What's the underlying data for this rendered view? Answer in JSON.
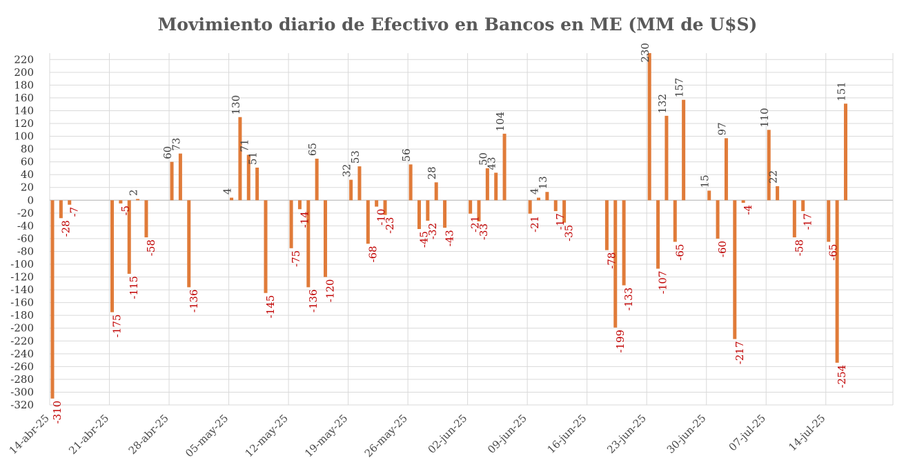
{
  "chart_data": {
    "type": "bar",
    "title": "Movimiento diario de Efectivo en Bancos en ME (MM de U$S)",
    "xlabel": "",
    "ylabel": "",
    "ylim": [
      -320,
      230
    ],
    "y_ticks": [
      220,
      200,
      180,
      160,
      140,
      120,
      100,
      80,
      60,
      40,
      20,
      0,
      -20,
      -40,
      -60,
      -80,
      -100,
      -120,
      -140,
      -160,
      -180,
      -200,
      -220,
      -240,
      -260,
      -280,
      -300,
      -320
    ],
    "x_ticks": [
      "14-abr-25",
      "21-abr-25",
      "28-abr-25",
      "05-may-25",
      "12-may-25",
      "19-may-25",
      "26-may-25",
      "02-jun-25",
      "09-jun-25",
      "16-jun-25",
      "23-jun-25",
      "30-jun-25",
      "07-jul-25",
      "14-jul-25"
    ],
    "grid": true,
    "legend": "none",
    "colors": {
      "bar": "#e07b39",
      "positive_label": "#3f3f3f",
      "negative_label": "#c00000",
      "grid": "#d9d9d9"
    },
    "data": [
      {
        "x": "14-abr-25",
        "y": -310
      },
      {
        "x": "15-abr-25",
        "y": -28
      },
      {
        "x": "16-abr-25",
        "y": -7
      },
      {
        "x": "21-abr-25",
        "y": -175
      },
      {
        "x": "22-abr-25",
        "y": -5
      },
      {
        "x": "23-abr-25",
        "y": -115
      },
      {
        "x": "24-abr-25",
        "y": 2
      },
      {
        "x": "25-abr-25",
        "y": -58
      },
      {
        "x": "28-abr-25",
        "y": 60
      },
      {
        "x": "29-abr-25",
        "y": 73
      },
      {
        "x": "30-abr-25",
        "y": -136
      },
      {
        "x": "05-may-25",
        "y": 4
      },
      {
        "x": "06-may-25",
        "y": 130
      },
      {
        "x": "07-may-25",
        "y": 71
      },
      {
        "x": "08-may-25",
        "y": 51
      },
      {
        "x": "09-may-25",
        "y": -145
      },
      {
        "x": "12-may-25",
        "y": -75
      },
      {
        "x": "13-may-25",
        "y": -14
      },
      {
        "x": "14-may-25",
        "y": -136
      },
      {
        "x": "15-may-25",
        "y": 65
      },
      {
        "x": "16-may-25",
        "y": -120
      },
      {
        "x": "19-may-25",
        "y": 32
      },
      {
        "x": "20-may-25",
        "y": 53
      },
      {
        "x": "21-may-25",
        "y": -68
      },
      {
        "x": "22-may-25",
        "y": -10
      },
      {
        "x": "23-may-25",
        "y": -23
      },
      {
        "x": "26-may-25",
        "y": 56
      },
      {
        "x": "27-may-25",
        "y": -45
      },
      {
        "x": "28-may-25",
        "y": -32
      },
      {
        "x": "29-may-25",
        "y": 28
      },
      {
        "x": "30-may-25",
        "y": -43
      },
      {
        "x": "02-jun-25",
        "y": -21
      },
      {
        "x": "03-jun-25",
        "y": -33
      },
      {
        "x": "04-jun-25",
        "y": 50
      },
      {
        "x": "05-jun-25",
        "y": 43
      },
      {
        "x": "06-jun-25",
        "y": 104
      },
      {
        "x": "09-jun-25",
        "y": -21
      },
      {
        "x": "10-jun-25",
        "y": 4
      },
      {
        "x": "11-jun-25",
        "y": 13
      },
      {
        "x": "12-jun-25",
        "y": -17
      },
      {
        "x": "13-jun-25",
        "y": -35
      },
      {
        "x": "18-jun-25",
        "y": -78
      },
      {
        "x": "19-jun-25",
        "y": -199
      },
      {
        "x": "20-jun-25",
        "y": -133
      },
      {
        "x": "23-jun-25",
        "y": 230
      },
      {
        "x": "24-jun-25",
        "y": -107
      },
      {
        "x": "25-jun-25",
        "y": 132
      },
      {
        "x": "26-jun-25",
        "y": -65
      },
      {
        "x": "27-jun-25",
        "y": 157
      },
      {
        "x": "30-jun-25",
        "y": 15
      },
      {
        "x": "01-jul-25",
        "y": -60
      },
      {
        "x": "02-jul-25",
        "y": 97
      },
      {
        "x": "03-jul-25",
        "y": -217
      },
      {
        "x": "04-jul-25",
        "y": -4
      },
      {
        "x": "07-jul-25",
        "y": 110
      },
      {
        "x": "08-jul-25",
        "y": 22
      },
      {
        "x": "10-jul-25",
        "y": -58
      },
      {
        "x": "11-jul-25",
        "y": -17
      },
      {
        "x": "14-jul-25",
        "y": -65
      },
      {
        "x": "15-jul-25",
        "y": -254
      },
      {
        "x": "16-jul-25",
        "y": 151
      }
    ]
  }
}
